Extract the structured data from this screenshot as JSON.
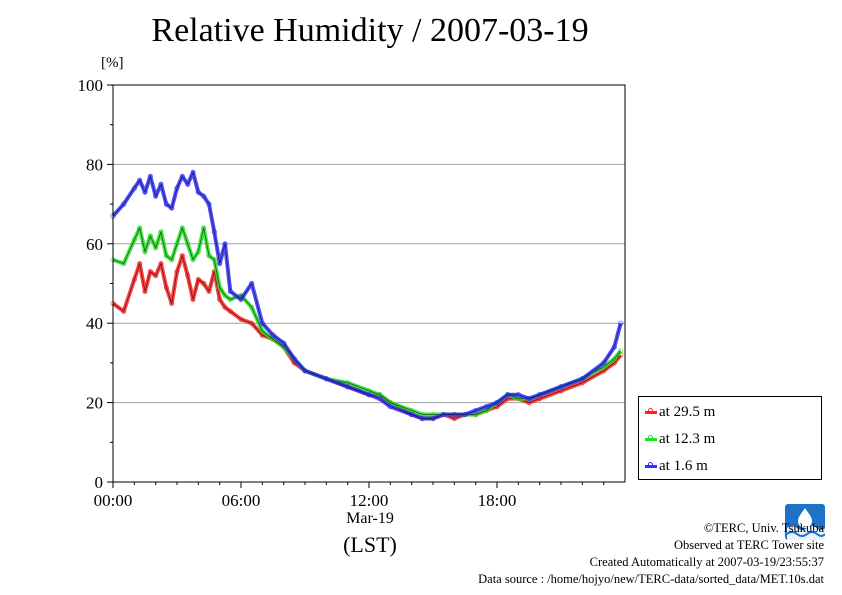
{
  "title": "Relative Humidity / 2007-03-19",
  "unit_label": "[%]",
  "x_axis": {
    "date_label": "Mar-19",
    "zone_label": "(LST)"
  },
  "credits": {
    "copyright": "©TERC, Univ. Tsukuba",
    "observed": "Observed at TERC Tower site",
    "created": "Created Automatically at 2007-03-19/23:55:37",
    "source": "Data source : /home/hojyo/new/TERC-data/sorted_data/MET.10s.dat"
  },
  "colors": {
    "at_29_5": "#ff2020",
    "at_12_3": "#20e020",
    "at_1_6": "#3030ff",
    "grid": "#a0a0a0",
    "logo": "#1e73c8"
  },
  "chart_data": {
    "type": "line",
    "title": "Relative Humidity / 2007-03-19",
    "xlabel": "(LST)",
    "ylabel": "[%]",
    "x_unit": "hours (LST)",
    "xlim": [
      0,
      24
    ],
    "ylim": [
      0,
      100
    ],
    "xticks": [
      0,
      6,
      12,
      18
    ],
    "xtick_labels": [
      "00:00",
      "06:00",
      "12:00",
      "18:00"
    ],
    "yticks": [
      0,
      20,
      40,
      60,
      80,
      100
    ],
    "ytick_labels": [
      "0",
      "20",
      "40",
      "60",
      "80",
      "100"
    ],
    "grid": true,
    "legend_position": "bottom-right outside",
    "series": [
      {
        "name": "at 29.5 m",
        "color": "#ff2020",
        "x": [
          0,
          0.5,
          1,
          1.25,
          1.5,
          1.75,
          2,
          2.25,
          2.5,
          2.75,
          3,
          3.25,
          3.5,
          3.75,
          4,
          4.25,
          4.5,
          4.75,
          5,
          5.25,
          5.5,
          6,
          6.5,
          7,
          7.5,
          8,
          8.5,
          9,
          10,
          11,
          12,
          12.5,
          13,
          14,
          14.5,
          15,
          15.5,
          16,
          16.5,
          17,
          17.5,
          18,
          18.5,
          19,
          19.5,
          20,
          21,
          22,
          23,
          23.5,
          23.8
        ],
        "y": [
          45,
          43,
          51,
          55,
          48,
          53,
          52,
          55,
          49,
          45,
          53,
          57,
          52,
          46,
          51,
          50,
          48,
          53,
          46,
          44,
          43,
          41,
          40,
          37,
          36,
          34,
          30,
          28,
          26,
          24,
          22,
          22,
          20,
          17,
          16,
          16,
          17,
          16,
          17,
          17,
          18,
          19,
          21,
          21,
          20,
          21,
          23,
          25,
          28,
          30,
          32
        ]
      },
      {
        "name": "at 12.3 m",
        "color": "#20e020",
        "x": [
          0,
          0.5,
          1,
          1.25,
          1.5,
          1.75,
          2,
          2.25,
          2.5,
          2.75,
          3,
          3.25,
          3.5,
          3.75,
          4,
          4.25,
          4.5,
          4.75,
          5,
          5.25,
          5.5,
          6,
          6.5,
          7,
          7.5,
          8,
          8.5,
          9,
          10,
          11,
          12,
          12.5,
          13,
          14,
          14.5,
          15,
          15.5,
          16,
          16.5,
          17,
          17.5,
          18,
          18.5,
          19,
          19.5,
          20,
          21,
          22,
          23,
          23.5,
          23.8
        ],
        "y": [
          56,
          55,
          61,
          64,
          58,
          62,
          59,
          63,
          57,
          56,
          60,
          64,
          60,
          56,
          58,
          64,
          57,
          56,
          49,
          47,
          46,
          47,
          44,
          38,
          36,
          34,
          31,
          28,
          26,
          25,
          23,
          22,
          20,
          18,
          17,
          17,
          17,
          17,
          17,
          17,
          18,
          20,
          22,
          21,
          21,
          22,
          24,
          26,
          29,
          31,
          33
        ]
      },
      {
        "name": "at 1.6 m",
        "color": "#3030ff",
        "x": [
          0,
          0.5,
          1,
          1.25,
          1.5,
          1.75,
          2,
          2.25,
          2.5,
          2.75,
          3,
          3.25,
          3.5,
          3.75,
          4,
          4.25,
          4.5,
          4.75,
          5,
          5.25,
          5.5,
          6,
          6.5,
          7,
          7.5,
          8,
          8.5,
          9,
          10,
          11,
          12,
          12.5,
          13,
          14,
          14.5,
          15,
          15.5,
          16,
          16.5,
          17,
          17.5,
          18,
          18.5,
          19,
          19.5,
          20,
          21,
          22,
          23,
          23.5,
          23.8
        ],
        "y": [
          67,
          70,
          74,
          76,
          73,
          77,
          72,
          75,
          70,
          69,
          74,
          77,
          75,
          78,
          73,
          72,
          70,
          63,
          55,
          60,
          48,
          46,
          50,
          40,
          37,
          35,
          31,
          28,
          26,
          24,
          22,
          21,
          19,
          17,
          16,
          16,
          17,
          17,
          17,
          18,
          19,
          20,
          22,
          22,
          21,
          22,
          24,
          26,
          30,
          34,
          40
        ]
      }
    ]
  }
}
